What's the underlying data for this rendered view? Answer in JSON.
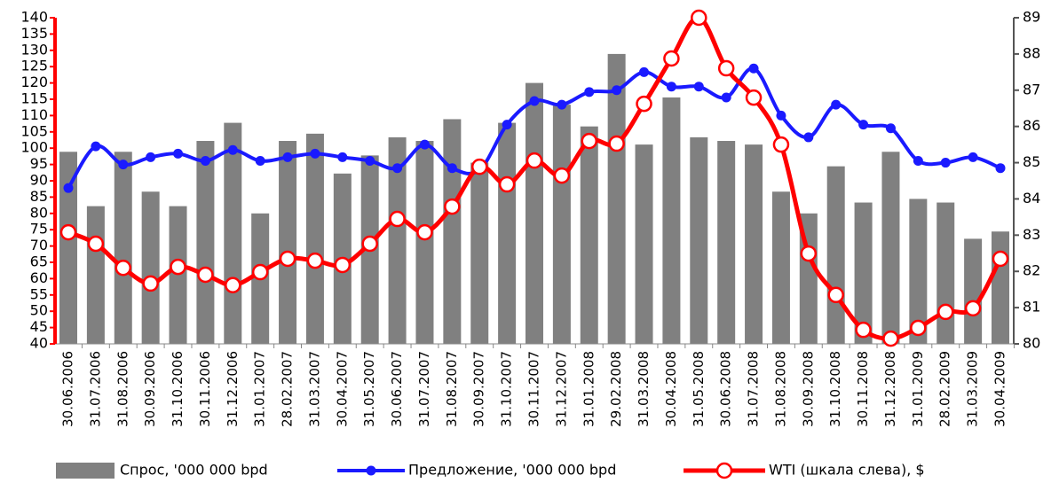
{
  "chart_data": {
    "type": "bar_line",
    "categories": [
      "30.06.2006",
      "31.07.2006",
      "31.08.2006",
      "30.09.2006",
      "31.10.2006",
      "30.11.2006",
      "31.12.2006",
      "31.01.2007",
      "28.02.2007",
      "31.03.2007",
      "30.04.2007",
      "31.05.2007",
      "30.06.2007",
      "31.07.2007",
      "31.08.2007",
      "30.09.2007",
      "31.10.2007",
      "30.11.2007",
      "31.12.2007",
      "31.01.2008",
      "29.02.2008",
      "31.03.2008",
      "30.04.2008",
      "31.05.2008",
      "30.06.2008",
      "31.07.2008",
      "31.08.2008",
      "30.09.2008",
      "31.10.2008",
      "30.11.2008",
      "31.12.2008",
      "31.01.2009",
      "28.02.2009",
      "31.03.2009",
      "30.04.2009"
    ],
    "series": [
      {
        "name": "Спрос, '000 000 bpd",
        "kind": "bar",
        "axis": "y2",
        "color": "#808080",
        "values": [
          85.3,
          83.8,
          85.3,
          84.2,
          83.8,
          85.6,
          86.1,
          83.6,
          85.6,
          85.8,
          84.7,
          85.2,
          85.7,
          85.6,
          86.2,
          85.0,
          86.1,
          87.2,
          86.6,
          86.0,
          88.0,
          85.5,
          86.8,
          85.7,
          85.6,
          85.5,
          84.2,
          83.6,
          84.9,
          83.9,
          85.3,
          84.0,
          83.9,
          82.9,
          83.1
        ]
      },
      {
        "name": "Предложение, '000 000 bpd",
        "kind": "line",
        "axis": "y2",
        "color": "#1a1aff",
        "values": [
          84.3,
          85.45,
          84.95,
          85.15,
          85.25,
          85.05,
          85.35,
          85.05,
          85.15,
          85.25,
          85.15,
          85.05,
          84.85,
          85.5,
          84.85,
          84.8,
          86.05,
          86.7,
          86.6,
          86.95,
          87.0,
          87.5,
          87.1,
          87.1,
          86.8,
          87.6,
          86.3,
          85.7,
          86.6,
          86.05,
          85.95,
          85.05,
          85.0,
          85.15,
          84.85
        ]
      },
      {
        "name": "WTI (шкала слева), $",
        "kind": "line",
        "axis": "y",
        "color": "#ff0000",
        "values": [
          74.2,
          70.7,
          63.3,
          58.5,
          63.6,
          61.2,
          58.0,
          62.0,
          66.1,
          65.5,
          64.2,
          70.7,
          78.3,
          74.2,
          82.1,
          94.3,
          88.9,
          96.2,
          91.6,
          102.2,
          101.4,
          113.6,
          127.5,
          140,
          124.5,
          115.5,
          101.1,
          67.7,
          55.0,
          44.3,
          41.6,
          44.9,
          49.8,
          50.9,
          66.1
        ]
      }
    ],
    "ylim": [
      40,
      140
    ],
    "yticks": [
      40,
      45,
      50,
      55,
      60,
      65,
      70,
      75,
      80,
      85,
      90,
      95,
      100,
      105,
      110,
      115,
      120,
      125,
      130,
      135,
      140
    ],
    "y2lim": [
      80,
      89
    ],
    "y2ticks": [
      80,
      81,
      82,
      83,
      84,
      85,
      86,
      87,
      88,
      89
    ],
    "legend": "bottom"
  }
}
